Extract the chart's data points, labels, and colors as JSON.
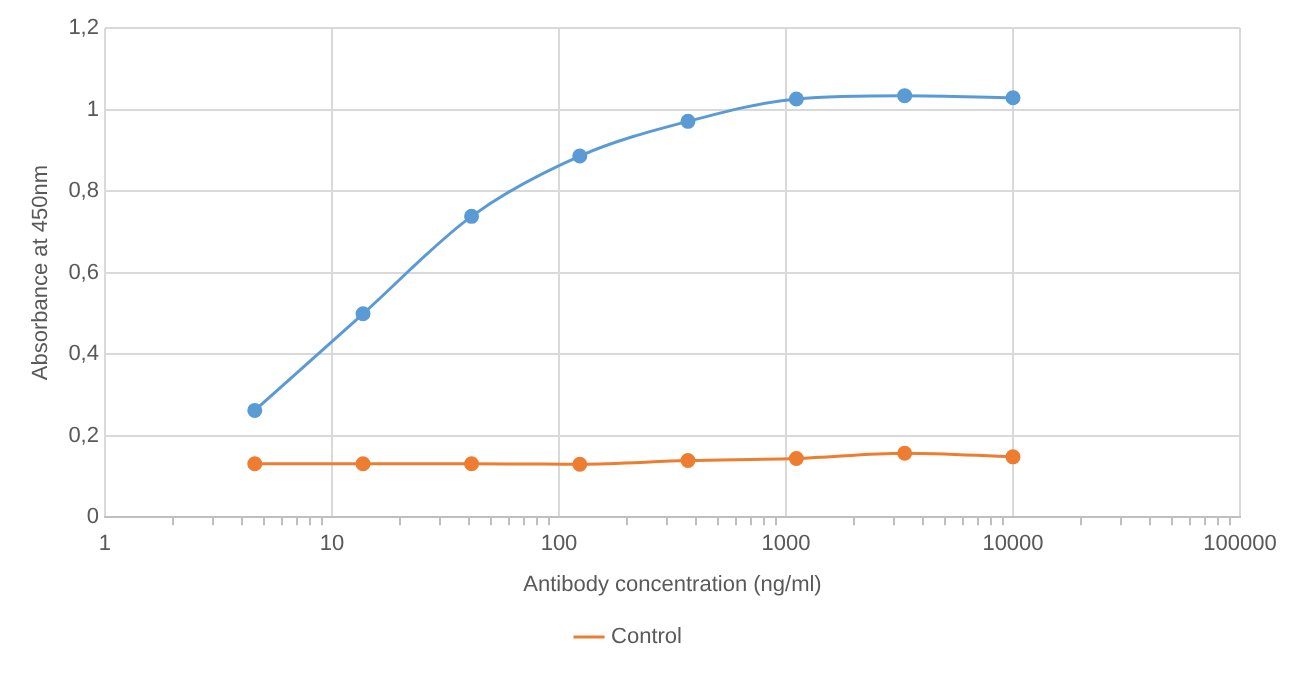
{
  "chart_data": {
    "type": "line",
    "xlabel": "Antibody concentration (ng/ml)",
    "ylabel": "Absorbance at 450nm",
    "log": "x",
    "x": [
      4.57,
      13.7,
      41.2,
      123.5,
      370,
      1111,
      3333,
      10000
    ],
    "series": [
      {
        "color": "#5b9bd5",
        "values": [
          0.262,
          0.499,
          0.738,
          0.886,
          0.971,
          1.026,
          1.034,
          1.029
        ]
      },
      {
        "name": "Control",
        "color": "#ed7d31",
        "values": [
          0.131,
          0.131,
          0.131,
          0.13,
          0.139,
          0.144,
          0.157,
          0.148
        ]
      }
    ],
    "xlim": [
      1,
      100000
    ],
    "xticks": [
      1,
      {
        "value": 2,
        "label": null
      },
      {
        "value": 3,
        "label": null
      },
      {
        "value": 4,
        "label": null
      },
      {
        "value": 5,
        "label": null
      },
      {
        "value": 6,
        "label": null
      },
      {
        "value": 7,
        "label": null
      },
      {
        "value": 8,
        "label": null
      },
      {
        "value": 9,
        "label": null
      },
      10,
      {
        "value": 20,
        "label": null
      },
      {
        "value": 30,
        "label": null
      },
      {
        "value": 40,
        "label": null
      },
      {
        "value": 50,
        "label": null
      },
      {
        "value": 60,
        "label": null
      },
      {
        "value": 70,
        "label": null
      },
      {
        "value": 80,
        "label": null
      },
      {
        "value": 90,
        "label": null
      },
      100,
      {
        "value": 200,
        "label": null
      },
      {
        "value": 300,
        "label": null
      },
      {
        "value": 400,
        "label": null
      },
      {
        "value": 500,
        "label": null
      },
      {
        "value": 600,
        "label": null
      },
      {
        "value": 700,
        "label": null
      },
      {
        "value": 800,
        "label": null
      },
      {
        "value": 900,
        "label": null
      },
      1000,
      {
        "value": 2000,
        "label": null
      },
      {
        "value": 3000,
        "label": null
      },
      {
        "value": 4000,
        "label": null
      },
      {
        "value": 5000,
        "label": null
      },
      {
        "value": 6000,
        "label": null
      },
      {
        "value": 7000,
        "label": null
      },
      {
        "value": 8000,
        "label": null
      },
      {
        "value": 9000,
        "label": null
      },
      10000,
      {
        "value": 20000,
        "label": null
      },
      {
        "value": 30000,
        "label": null
      },
      {
        "value": 40000,
        "label": null
      },
      {
        "value": 50000,
        "label": null
      },
      {
        "value": 60000,
        "label": null
      },
      {
        "value": 70000,
        "label": null
      },
      {
        "value": 80000,
        "label": null
      },
      {
        "value": 90000,
        "label": null
      },
      100000
    ],
    "ylim": [
      0,
      1.2
    ],
    "yticks": [
      0,
      {
        "value": 0.2,
        "label": "0,2"
      },
      {
        "value": 0.4,
        "label": "0,4"
      },
      {
        "value": 0.6,
        "label": "0,6"
      },
      {
        "value": 0.8,
        "label": "0,8"
      },
      1,
      {
        "value": 1.2,
        "label": "1,2"
      }
    ],
    "grid": true,
    "legend": "bottom",
    "marker": "circle",
    "line_style": "solid"
  }
}
